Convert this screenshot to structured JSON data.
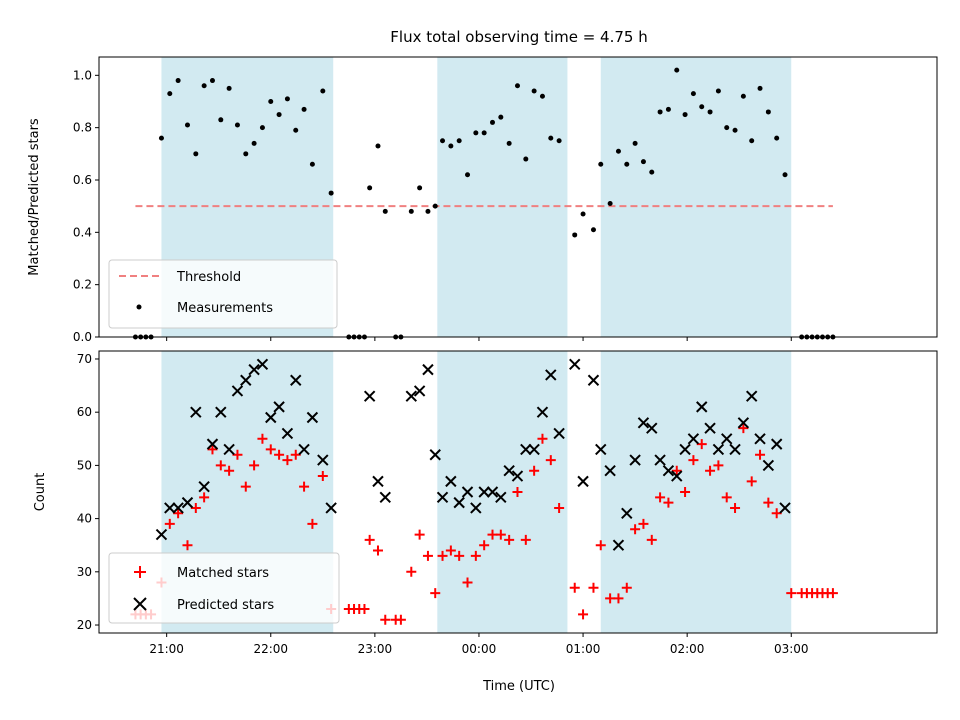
{
  "chart_data": {
    "type": "scatter",
    "title": "Flux total observing time = 4.75 h",
    "xlabel": "Time (UTC)",
    "x_unit": "hours after 21:00 UTC",
    "x_ticks": [
      {
        "x": 0,
        "label": "21:00"
      },
      {
        "x": 1,
        "label": "22:00"
      },
      {
        "x": 2,
        "label": "23:00"
      },
      {
        "x": 3,
        "label": "00:00"
      },
      {
        "x": 4,
        "label": "01:00"
      },
      {
        "x": 5,
        "label": "02:00"
      },
      {
        "x": 6,
        "label": "03:00"
      }
    ],
    "xlim": [
      -0.65,
      7.4
    ],
    "observing_windows": [
      [
        -0.05,
        1.6
      ],
      [
        2.6,
        3.85
      ],
      [
        4.17,
        6.0
      ]
    ],
    "window_color": "#add8e6",
    "top": {
      "ylabel": "Matched/Predicted stars",
      "ylim": [
        0,
        1.07
      ],
      "y_ticks": [
        0.0,
        0.2,
        0.4,
        0.6,
        0.8,
        1.0
      ],
      "y_tick_labels": [
        "0.0",
        "0.2",
        "0.4",
        "0.6",
        "0.8",
        "1.0"
      ],
      "threshold": {
        "name": "Threshold",
        "value": 0.5,
        "x_range": [
          -0.3,
          6.4
        ],
        "color": "#f08080"
      },
      "measurements": {
        "name": "Measurements",
        "color": "#000000",
        "points": [
          [
            -0.3,
            0
          ],
          [
            -0.25,
            0
          ],
          [
            -0.2,
            0
          ],
          [
            -0.15,
            0
          ],
          [
            -0.05,
            0.76
          ],
          [
            0.03,
            0.93
          ],
          [
            0.11,
            0.98
          ],
          [
            0.2,
            0.81
          ],
          [
            0.28,
            0.7
          ],
          [
            0.36,
            0.96
          ],
          [
            0.44,
            0.98
          ],
          [
            0.52,
            0.83
          ],
          [
            0.6,
            0.95
          ],
          [
            0.68,
            0.81
          ],
          [
            0.76,
            0.7
          ],
          [
            0.84,
            0.74
          ],
          [
            0.92,
            0.8
          ],
          [
            1.0,
            0.9
          ],
          [
            1.08,
            0.85
          ],
          [
            1.16,
            0.91
          ],
          [
            1.24,
            0.79
          ],
          [
            1.32,
            0.87
          ],
          [
            1.4,
            0.66
          ],
          [
            1.5,
            0.94
          ],
          [
            1.58,
            0.55
          ],
          [
            1.75,
            0
          ],
          [
            1.8,
            0
          ],
          [
            1.85,
            0
          ],
          [
            1.9,
            0
          ],
          [
            1.95,
            0.57
          ],
          [
            2.03,
            0.73
          ],
          [
            2.1,
            0.48
          ],
          [
            2.2,
            0
          ],
          [
            2.25,
            0
          ],
          [
            2.35,
            0.48
          ],
          [
            2.43,
            0.57
          ],
          [
            2.51,
            0.48
          ],
          [
            2.58,
            0.5
          ],
          [
            2.65,
            0.75
          ],
          [
            2.73,
            0.73
          ],
          [
            2.81,
            0.75
          ],
          [
            2.89,
            0.62
          ],
          [
            2.97,
            0.78
          ],
          [
            3.05,
            0.78
          ],
          [
            3.13,
            0.82
          ],
          [
            3.21,
            0.84
          ],
          [
            3.29,
            0.74
          ],
          [
            3.37,
            0.96
          ],
          [
            3.45,
            0.68
          ],
          [
            3.53,
            0.94
          ],
          [
            3.61,
            0.92
          ],
          [
            3.69,
            0.76
          ],
          [
            3.77,
            0.75
          ],
          [
            3.92,
            0.39
          ],
          [
            4.0,
            0.47
          ],
          [
            4.1,
            0.41
          ],
          [
            4.17,
            0.66
          ],
          [
            4.26,
            0.51
          ],
          [
            4.34,
            0.71
          ],
          [
            4.42,
            0.66
          ],
          [
            4.5,
            0.74
          ],
          [
            4.58,
            0.67
          ],
          [
            4.66,
            0.63
          ],
          [
            4.74,
            0.86
          ],
          [
            4.82,
            0.87
          ],
          [
            4.9,
            1.02
          ],
          [
            4.98,
            0.85
          ],
          [
            5.06,
            0.93
          ],
          [
            5.14,
            0.88
          ],
          [
            5.22,
            0.86
          ],
          [
            5.3,
            0.94
          ],
          [
            5.38,
            0.8
          ],
          [
            5.46,
            0.79
          ],
          [
            5.54,
            0.92
          ],
          [
            5.62,
            0.75
          ],
          [
            5.7,
            0.95
          ],
          [
            5.78,
            0.86
          ],
          [
            5.86,
            0.76
          ],
          [
            5.94,
            0.62
          ],
          [
            6.1,
            0
          ],
          [
            6.15,
            0
          ],
          [
            6.2,
            0
          ],
          [
            6.25,
            0
          ],
          [
            6.3,
            0
          ],
          [
            6.35,
            0
          ],
          [
            6.4,
            0
          ]
        ]
      }
    },
    "bottom": {
      "ylabel": "Count",
      "ylim": [
        18.5,
        71.5
      ],
      "y_ticks": [
        20,
        30,
        40,
        50,
        60,
        70
      ],
      "y_tick_labels": [
        "20",
        "30",
        "40",
        "50",
        "60",
        "70"
      ],
      "series": [
        {
          "name": "Matched stars",
          "marker": "plus",
          "color": "#ff0000",
          "points": [
            [
              -0.3,
              22
            ],
            [
              -0.25,
              22
            ],
            [
              -0.2,
              22
            ],
            [
              -0.15,
              22
            ],
            [
              -0.05,
              28
            ],
            [
              0.03,
              39
            ],
            [
              0.11,
              41
            ],
            [
              0.2,
              35
            ],
            [
              0.28,
              42
            ],
            [
              0.36,
              44
            ],
            [
              0.44,
              53
            ],
            [
              0.52,
              50
            ],
            [
              0.6,
              49
            ],
            [
              0.68,
              52
            ],
            [
              0.76,
              46
            ],
            [
              0.84,
              50
            ],
            [
              0.92,
              55
            ],
            [
              1.0,
              53
            ],
            [
              1.08,
              52
            ],
            [
              1.16,
              51
            ],
            [
              1.24,
              52
            ],
            [
              1.32,
              46
            ],
            [
              1.4,
              39
            ],
            [
              1.5,
              48
            ],
            [
              1.58,
              23
            ],
            [
              1.75,
              23
            ],
            [
              1.8,
              23
            ],
            [
              1.85,
              23
            ],
            [
              1.9,
              23
            ],
            [
              1.95,
              36
            ],
            [
              2.03,
              34
            ],
            [
              2.1,
              21
            ],
            [
              2.2,
              21
            ],
            [
              2.25,
              21
            ],
            [
              2.35,
              30
            ],
            [
              2.43,
              37
            ],
            [
              2.51,
              33
            ],
            [
              2.58,
              26
            ],
            [
              2.65,
              33
            ],
            [
              2.73,
              34
            ],
            [
              2.81,
              33
            ],
            [
              2.89,
              28
            ],
            [
              2.97,
              33
            ],
            [
              3.05,
              35
            ],
            [
              3.13,
              37
            ],
            [
              3.21,
              37
            ],
            [
              3.29,
              36
            ],
            [
              3.37,
              45
            ],
            [
              3.45,
              36
            ],
            [
              3.53,
              49
            ],
            [
              3.61,
              55
            ],
            [
              3.69,
              51
            ],
            [
              3.77,
              42
            ],
            [
              3.92,
              27
            ],
            [
              4.0,
              22
            ],
            [
              4.1,
              27
            ],
            [
              4.17,
              35
            ],
            [
              4.26,
              25
            ],
            [
              4.34,
              25
            ],
            [
              4.42,
              27
            ],
            [
              4.5,
              38
            ],
            [
              4.58,
              39
            ],
            [
              4.66,
              36
            ],
            [
              4.74,
              44
            ],
            [
              4.82,
              43
            ],
            [
              4.9,
              49
            ],
            [
              4.98,
              45
            ],
            [
              5.06,
              51
            ],
            [
              5.14,
              54
            ],
            [
              5.22,
              49
            ],
            [
              5.3,
              50
            ],
            [
              5.38,
              44
            ],
            [
              5.46,
              42
            ],
            [
              5.54,
              57
            ],
            [
              5.62,
              47
            ],
            [
              5.7,
              52
            ],
            [
              5.78,
              43
            ],
            [
              5.86,
              41
            ],
            [
              6.0,
              26
            ],
            [
              6.1,
              26
            ],
            [
              6.15,
              26
            ],
            [
              6.2,
              26
            ],
            [
              6.25,
              26
            ],
            [
              6.3,
              26
            ],
            [
              6.35,
              26
            ],
            [
              6.4,
              26
            ]
          ]
        },
        {
          "name": "Predicted stars",
          "marker": "x",
          "color": "#000000",
          "points": [
            [
              -0.05,
              37
            ],
            [
              0.03,
              42
            ],
            [
              0.11,
              42
            ],
            [
              0.2,
              43
            ],
            [
              0.28,
              60
            ],
            [
              0.36,
              46
            ],
            [
              0.44,
              54
            ],
            [
              0.52,
              60
            ],
            [
              0.6,
              53
            ],
            [
              0.68,
              64
            ],
            [
              0.76,
              66
            ],
            [
              0.84,
              68
            ],
            [
              0.92,
              69
            ],
            [
              1.0,
              59
            ],
            [
              1.08,
              61
            ],
            [
              1.16,
              56
            ],
            [
              1.24,
              66
            ],
            [
              1.32,
              53
            ],
            [
              1.4,
              59
            ],
            [
              1.5,
              51
            ],
            [
              1.58,
              42
            ],
            [
              1.95,
              63
            ],
            [
              2.03,
              47
            ],
            [
              2.1,
              44
            ],
            [
              2.35,
              63
            ],
            [
              2.43,
              64
            ],
            [
              2.51,
              68
            ],
            [
              2.58,
              52
            ],
            [
              2.65,
              44
            ],
            [
              2.73,
              47
            ],
            [
              2.81,
              43
            ],
            [
              2.89,
              45
            ],
            [
              2.97,
              42
            ],
            [
              3.05,
              45
            ],
            [
              3.13,
              45
            ],
            [
              3.21,
              44
            ],
            [
              3.29,
              49
            ],
            [
              3.37,
              48
            ],
            [
              3.45,
              53
            ],
            [
              3.53,
              53
            ],
            [
              3.61,
              60
            ],
            [
              3.69,
              67
            ],
            [
              3.77,
              56
            ],
            [
              3.92,
              69
            ],
            [
              4.0,
              47
            ],
            [
              4.1,
              66
            ],
            [
              4.17,
              53
            ],
            [
              4.26,
              49
            ],
            [
              4.34,
              35
            ],
            [
              4.42,
              41
            ],
            [
              4.5,
              51
            ],
            [
              4.58,
              58
            ],
            [
              4.66,
              57
            ],
            [
              4.74,
              51
            ],
            [
              4.82,
              49
            ],
            [
              4.9,
              48
            ],
            [
              4.98,
              53
            ],
            [
              5.06,
              55
            ],
            [
              5.14,
              61
            ],
            [
              5.22,
              57
            ],
            [
              5.3,
              53
            ],
            [
              5.38,
              55
            ],
            [
              5.46,
              53
            ],
            [
              5.54,
              58
            ],
            [
              5.62,
              63
            ],
            [
              5.7,
              55
            ],
            [
              5.78,
              50
            ],
            [
              5.86,
              54
            ],
            [
              5.94,
              42
            ]
          ]
        }
      ]
    }
  }
}
